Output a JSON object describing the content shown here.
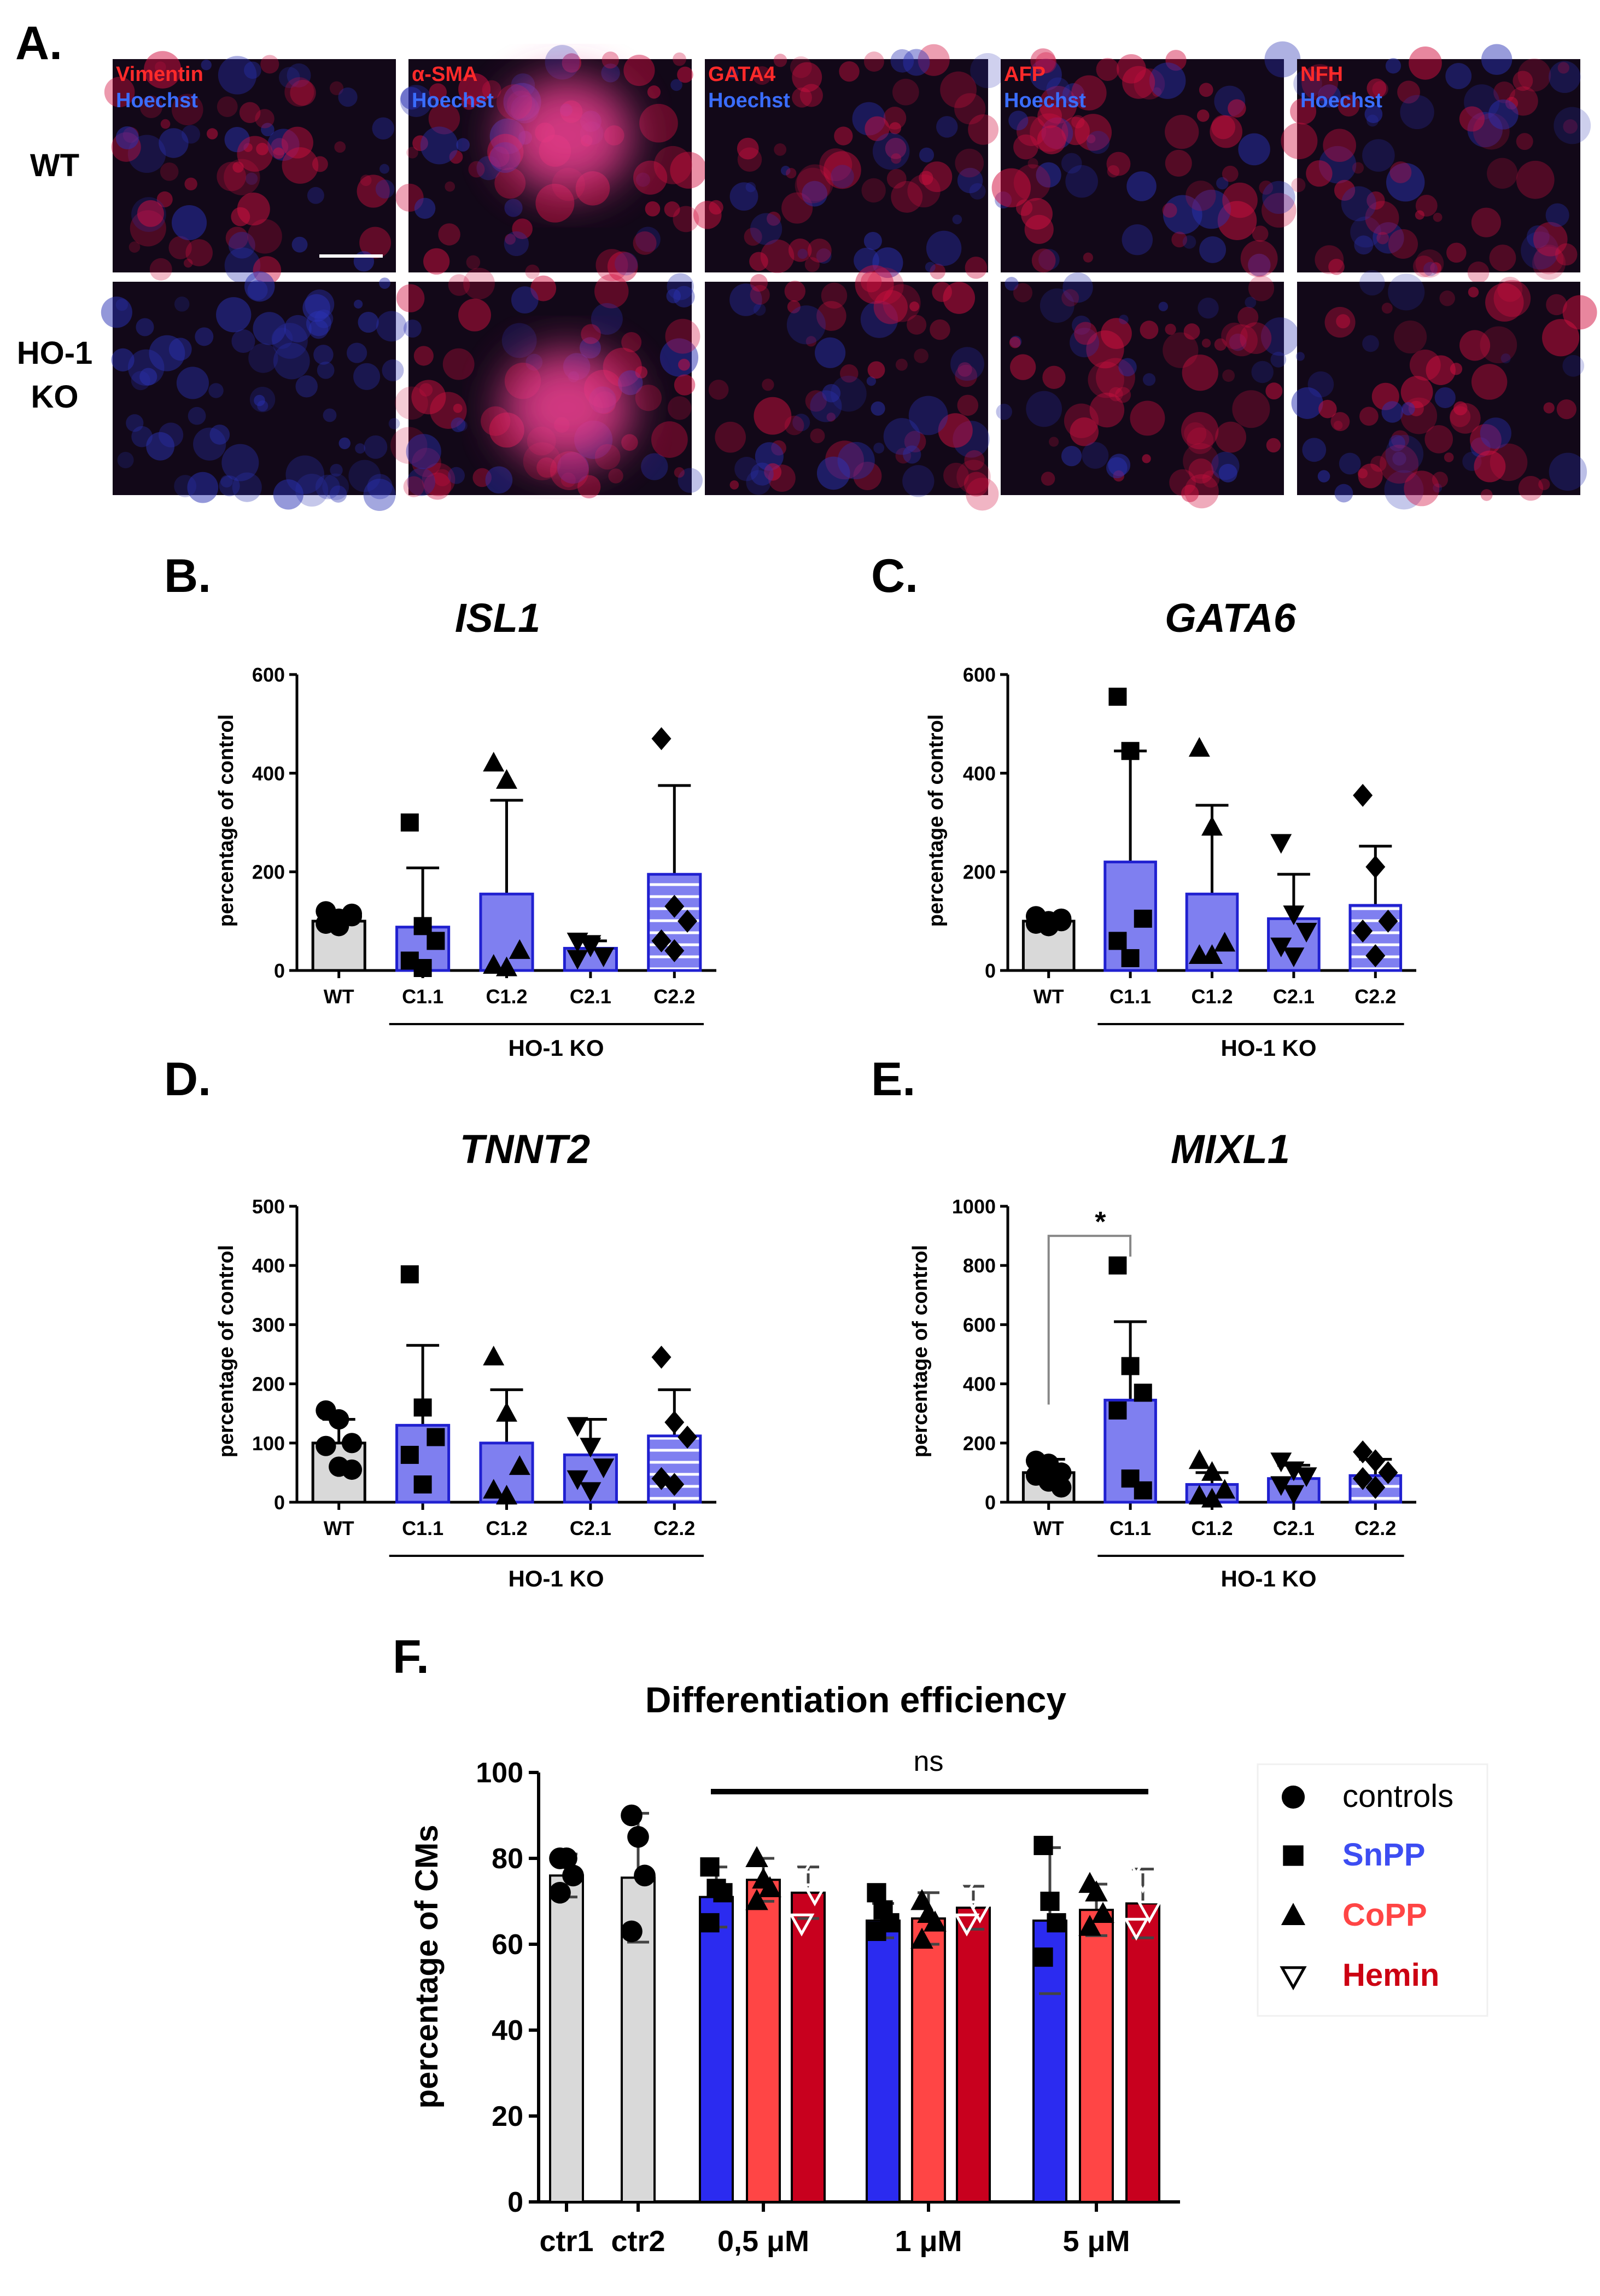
{
  "panel_A": {
    "label": "A.",
    "rows": [
      {
        "label": "WT"
      },
      {
        "label_line1": "HO-1",
        "label_line2": "KO"
      }
    ],
    "columns": [
      {
        "stain": "Vimentin",
        "counterstain": "Hoechst"
      },
      {
        "stain": "α-SMA",
        "counterstain": "Hoechst"
      },
      {
        "stain": "GATA4",
        "counterstain": "Hoechst"
      },
      {
        "stain": "AFP",
        "counterstain": "Hoechst"
      },
      {
        "stain": "NFH",
        "counterstain": "Hoechst"
      }
    ],
    "colors": {
      "tissue_red": "#d21040",
      "tissue_magenta": "#e63c8c",
      "nuclei_blue": "#2a32b4",
      "background": "#120818"
    }
  },
  "chart_data": [
    {
      "panel": "B.",
      "type": "bar",
      "title": "ISL1",
      "ylabel": "percentage of control",
      "ylim": [
        0,
        600
      ],
      "yticks": [
        0,
        200,
        400,
        600
      ],
      "categories": [
        "WT",
        "C1.1",
        "C1.2",
        "C2.1",
        "C2.2"
      ],
      "group_label": "HO-1 KO",
      "values": [
        100,
        88,
        155,
        45,
        195
      ],
      "errors": [
        15,
        120,
        190,
        15,
        180
      ],
      "points": [
        [
          95,
          105,
          110,
          95,
          90,
          115,
          120
        ],
        [
          300,
          90,
          60,
          20,
          5
        ],
        [
          420,
          385,
          40,
          10,
          5
        ],
        [
          60,
          50,
          30,
          25,
          55
        ],
        [
          470,
          130,
          100,
          60,
          40
        ]
      ],
      "markers": [
        "circle",
        "square",
        "triangle",
        "triangle-down",
        "diamond"
      ],
      "fills": [
        "#d9d9d9",
        "#7f7ff0",
        "#7f7ff0",
        "#7f7ff0",
        "#7f7ff0"
      ],
      "hatched": [
        false,
        false,
        false,
        false,
        true
      ]
    },
    {
      "panel": "C.",
      "type": "bar",
      "title": "GATA6",
      "ylabel": "percentage of control",
      "ylim": [
        0,
        600
      ],
      "yticks": [
        0,
        200,
        400,
        600
      ],
      "categories": [
        "WT",
        "C1.1",
        "C1.2",
        "C2.1",
        "C2.2"
      ],
      "group_label": "HO-1 KO",
      "values": [
        100,
        220,
        155,
        105,
        132
      ],
      "errors": [
        10,
        225,
        180,
        90,
        120
      ],
      "points": [
        [
          95,
          100,
          105,
          110,
          90,
          100
        ],
        [
          555,
          445,
          105,
          60,
          25
        ],
        [
          450,
          290,
          55,
          30,
          30
        ],
        [
          260,
          115,
          80,
          50,
          30
        ],
        [
          355,
          210,
          100,
          80,
          30
        ]
      ],
      "markers": [
        "circle",
        "square",
        "triangle",
        "triangle-down",
        "diamond"
      ],
      "fills": [
        "#d9d9d9",
        "#7f7ff0",
        "#7f7ff0",
        "#7f7ff0",
        "#7f7ff0"
      ],
      "hatched": [
        false,
        false,
        false,
        false,
        true
      ]
    },
    {
      "panel": "D.",
      "type": "bar",
      "title": "TNNT2",
      "ylabel": "percentage of control",
      "ylim": [
        0,
        500
      ],
      "yticks": [
        0,
        100,
        200,
        300,
        400,
        500
      ],
      "categories": [
        "WT",
        "C1.1",
        "C1.2",
        "C2.1",
        "C2.2"
      ],
      "group_label": "HO-1 KO",
      "values": [
        100,
        130,
        100,
        80,
        112
      ],
      "errors": [
        40,
        135,
        90,
        60,
        78
      ],
      "points": [
        [
          155,
          140,
          100,
          95,
          60,
          55
        ],
        [
          385,
          160,
          110,
          80,
          30
        ],
        [
          245,
          150,
          60,
          20,
          10
        ],
        [
          130,
          95,
          60,
          40,
          20
        ],
        [
          245,
          135,
          110,
          40,
          30
        ]
      ],
      "markers": [
        "circle",
        "square",
        "triangle",
        "triangle-down",
        "diamond"
      ],
      "fills": [
        "#d9d9d9",
        "#7f7ff0",
        "#7f7ff0",
        "#7f7ff0",
        "#7f7ff0"
      ],
      "hatched": [
        false,
        false,
        false,
        false,
        true
      ]
    },
    {
      "panel": "E.",
      "type": "bar",
      "title": "MIXL1",
      "ylabel": "percentage of control",
      "ylim": [
        0,
        1000
      ],
      "yticks": [
        0,
        200,
        400,
        600,
        800,
        1000
      ],
      "categories": [
        "WT",
        "C1.1",
        "C1.2",
        "C2.1",
        "C2.2"
      ],
      "group_label": "HO-1 KO",
      "values": [
        100,
        345,
        60,
        80,
        90
      ],
      "errors": [
        45,
        265,
        40,
        45,
        55
      ],
      "points": [
        [
          140,
          130,
          100,
          90,
          70,
          50
        ],
        [
          800,
          460,
          370,
          310,
          80,
          40
        ],
        [
          140,
          100,
          40,
          20,
          10
        ],
        [
          140,
          110,
          90,
          60,
          30
        ],
        [
          170,
          140,
          100,
          80,
          50
        ]
      ],
      "markers": [
        "circle",
        "square",
        "triangle",
        "triangle-down",
        "diamond"
      ],
      "fills": [
        "#d9d9d9",
        "#7f7ff0",
        "#7f7ff0",
        "#7f7ff0",
        "#7f7ff0"
      ],
      "hatched": [
        false,
        false,
        false,
        false,
        true
      ],
      "significance": {
        "label": "*",
        "between": [
          "WT",
          "C1.1"
        ]
      }
    },
    {
      "panel": "F.",
      "type": "bar",
      "title": "Differentiation efficiency",
      "ylabel": "percentage of CMs",
      "ylim": [
        0,
        100
      ],
      "yticks": [
        0,
        20,
        40,
        60,
        80,
        100
      ],
      "groups": [
        "ctr1",
        "ctr2",
        "0,5 μM",
        "1 μM",
        "5 μM"
      ],
      "ns_label": "ns",
      "series": [
        {
          "name": "controls",
          "color": "#d9d9d9",
          "marker": "circle"
        },
        {
          "name": "SnPP",
          "color": "#2b2bf0",
          "marker": "square",
          "text_color": "#3d4df2"
        },
        {
          "name": "CoPP",
          "color": "#ff4545",
          "marker": "triangle",
          "text_color": "#ff4545"
        },
        {
          "name": "Hemin",
          "color": "#c8001e",
          "marker": "triangle-down-open",
          "text_color": "#cc0012"
        }
      ],
      "bars": [
        {
          "group": "ctr1",
          "series": "controls",
          "value": 76,
          "error": 5,
          "points": [
            80,
            80,
            76,
            72
          ]
        },
        {
          "group": "ctr2",
          "series": "controls",
          "value": 75.5,
          "error": 15,
          "points": [
            90,
            85,
            76,
            63
          ]
        },
        {
          "group": "0,5 μM",
          "series": "SnPP",
          "value": 71,
          "error": 7,
          "points": [
            78,
            73,
            72,
            65
          ]
        },
        {
          "group": "0,5 μM",
          "series": "CoPP",
          "value": 75,
          "error": 5,
          "points": [
            80,
            75,
            73,
            70
          ]
        },
        {
          "group": "0,5 μM",
          "series": "Hemin",
          "value": 72,
          "error": 6,
          "points": [
            78,
            75,
            72,
            65
          ]
        },
        {
          "group": "1 μM",
          "series": "SnPP",
          "value": 65.5,
          "error": 4,
          "points": [
            72,
            68,
            65,
            63
          ]
        },
        {
          "group": "1 μM",
          "series": "CoPP",
          "value": 66,
          "error": 6,
          "points": [
            70,
            67,
            65,
            61
          ]
        },
        {
          "group": "1 μM",
          "series": "Hemin",
          "value": 68.5,
          "error": 5,
          "points": [
            74,
            71,
            68,
            65
          ]
        },
        {
          "group": "5 μM",
          "series": "SnPP",
          "value": 65.5,
          "error": 17,
          "points": [
            83,
            70,
            65,
            57
          ]
        },
        {
          "group": "5 μM",
          "series": "CoPP",
          "value": 68,
          "error": 6,
          "points": [
            74,
            72,
            67,
            64
          ]
        },
        {
          "group": "5 μM",
          "series": "Hemin",
          "value": 69.5,
          "error": 8,
          "points": [
            79,
            75,
            68,
            64
          ]
        }
      ]
    }
  ]
}
